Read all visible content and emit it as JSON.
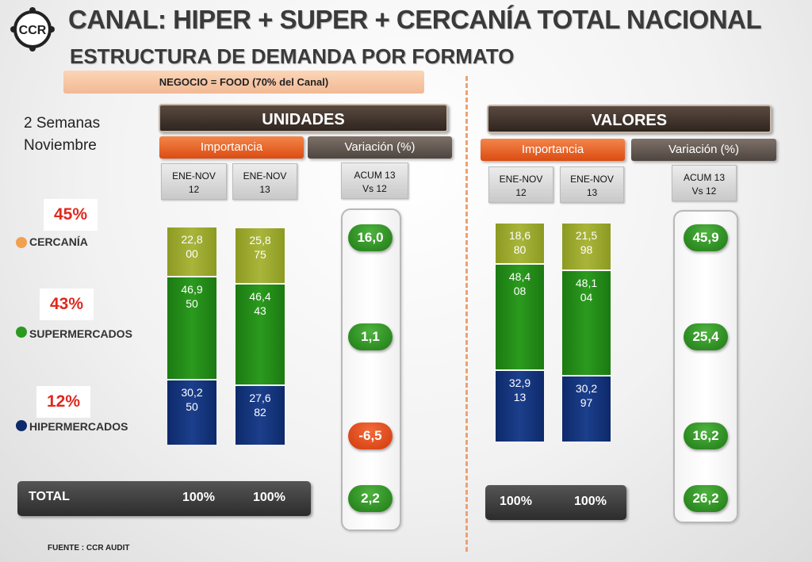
{
  "header": {
    "logo_text": "CCR",
    "title": "CANAL: HIPER + SUPER + CERCANÍA TOTAL NACIONAL",
    "subtitle": "ESTRUCTURA DE DEMANDA POR FORMATO",
    "negocio": "NEGOCIO = FOOD (70% del Canal)"
  },
  "period": {
    "line1": "2 Semanas",
    "line2": "Noviembre"
  },
  "legend": [
    {
      "share": "45%",
      "label": "CERCANÍA",
      "color": "#f0a050"
    },
    {
      "share": "43%",
      "label": "SUPERMERCADOS",
      "color": "#2a9a20"
    },
    {
      "share": "12%",
      "label": "HIPERMERCADOS",
      "color": "#0d2a6a"
    }
  ],
  "unidades": {
    "title": "UNIDADES",
    "importancia": "Importancia",
    "variacion": "Variación (%)",
    "col1": {
      "line1": "ENE-NOV",
      "line2": "12"
    },
    "col2": {
      "line1": "ENE-NOV",
      "line2": "13"
    },
    "col3": {
      "line1": "ACUM  13",
      "line2": "Vs 12"
    },
    "total_label": "TOTAL",
    "total1": "100%",
    "total2": "100%"
  },
  "valores": {
    "title": "VALORES",
    "importancia": "Importancia",
    "variacion": "Variación  (%)",
    "col1": {
      "line1": "ENE-NOV",
      "line2": "12"
    },
    "col2": {
      "line1": "ENE-NOV",
      "line2": "13"
    },
    "col3": {
      "line1": "ACUM  13",
      "line2": "Vs 12"
    },
    "total1": "100%",
    "total2": "100%"
  },
  "source": "FUENTE : CCR AUDIT",
  "chart_data": [
    {
      "type": "bar",
      "stacked": true,
      "title": "UNIDADES",
      "categories": [
        "ENE-NOV 12",
        "ENE-NOV 13"
      ],
      "series": [
        {
          "name": "HIPERMERCADOS",
          "values": [
            30.25,
            27.682
          ],
          "labels": [
            [
              "30,2",
              "50"
            ],
            [
              "27,6",
              "82"
            ]
          ]
        },
        {
          "name": "SUPERMERCADOS",
          "values": [
            46.95,
            46.443
          ],
          "labels": [
            [
              "46,9",
              "50"
            ],
            [
              "46,4",
              "43"
            ]
          ]
        },
        {
          "name": "CERCANÍA",
          "values": [
            22.8,
            25.875
          ],
          "labels": [
            [
              "22,8",
              "00"
            ],
            [
              "25,8",
              "75"
            ]
          ]
        }
      ],
      "variation": {
        "label": "ACUM 13 Vs 12",
        "CERCANÍA": "16,0",
        "SUPERMERCADOS": "1,1",
        "HIPERMERCADOS": "-6,5",
        "TOTAL": "2,2"
      }
    },
    {
      "type": "bar",
      "stacked": true,
      "title": "VALORES",
      "categories": [
        "ENE-NOV 12",
        "ENE-NOV 13"
      ],
      "series": [
        {
          "name": "HIPERMERCADOS",
          "values": [
            32.913,
            30.297
          ],
          "labels": [
            [
              "32,9",
              "13"
            ],
            [
              "30,2",
              "97"
            ]
          ]
        },
        {
          "name": "SUPERMERCADOS",
          "values": [
            48.408,
            48.104
          ],
          "labels": [
            [
              "48,4",
              "08"
            ],
            [
              "48,1",
              "04"
            ]
          ]
        },
        {
          "name": "CERCANÍA",
          "values": [
            18.68,
            21.598
          ],
          "labels": [
            [
              "18,6",
              "80"
            ],
            [
              "21,5",
              "98"
            ]
          ]
        }
      ],
      "variation": {
        "label": "ACUM 13 Vs 12",
        "CERCANÍA": "45,9",
        "SUPERMERCADOS": "25,4",
        "HIPERMERCADOS": "16,2",
        "TOTAL": "26,2"
      }
    }
  ]
}
